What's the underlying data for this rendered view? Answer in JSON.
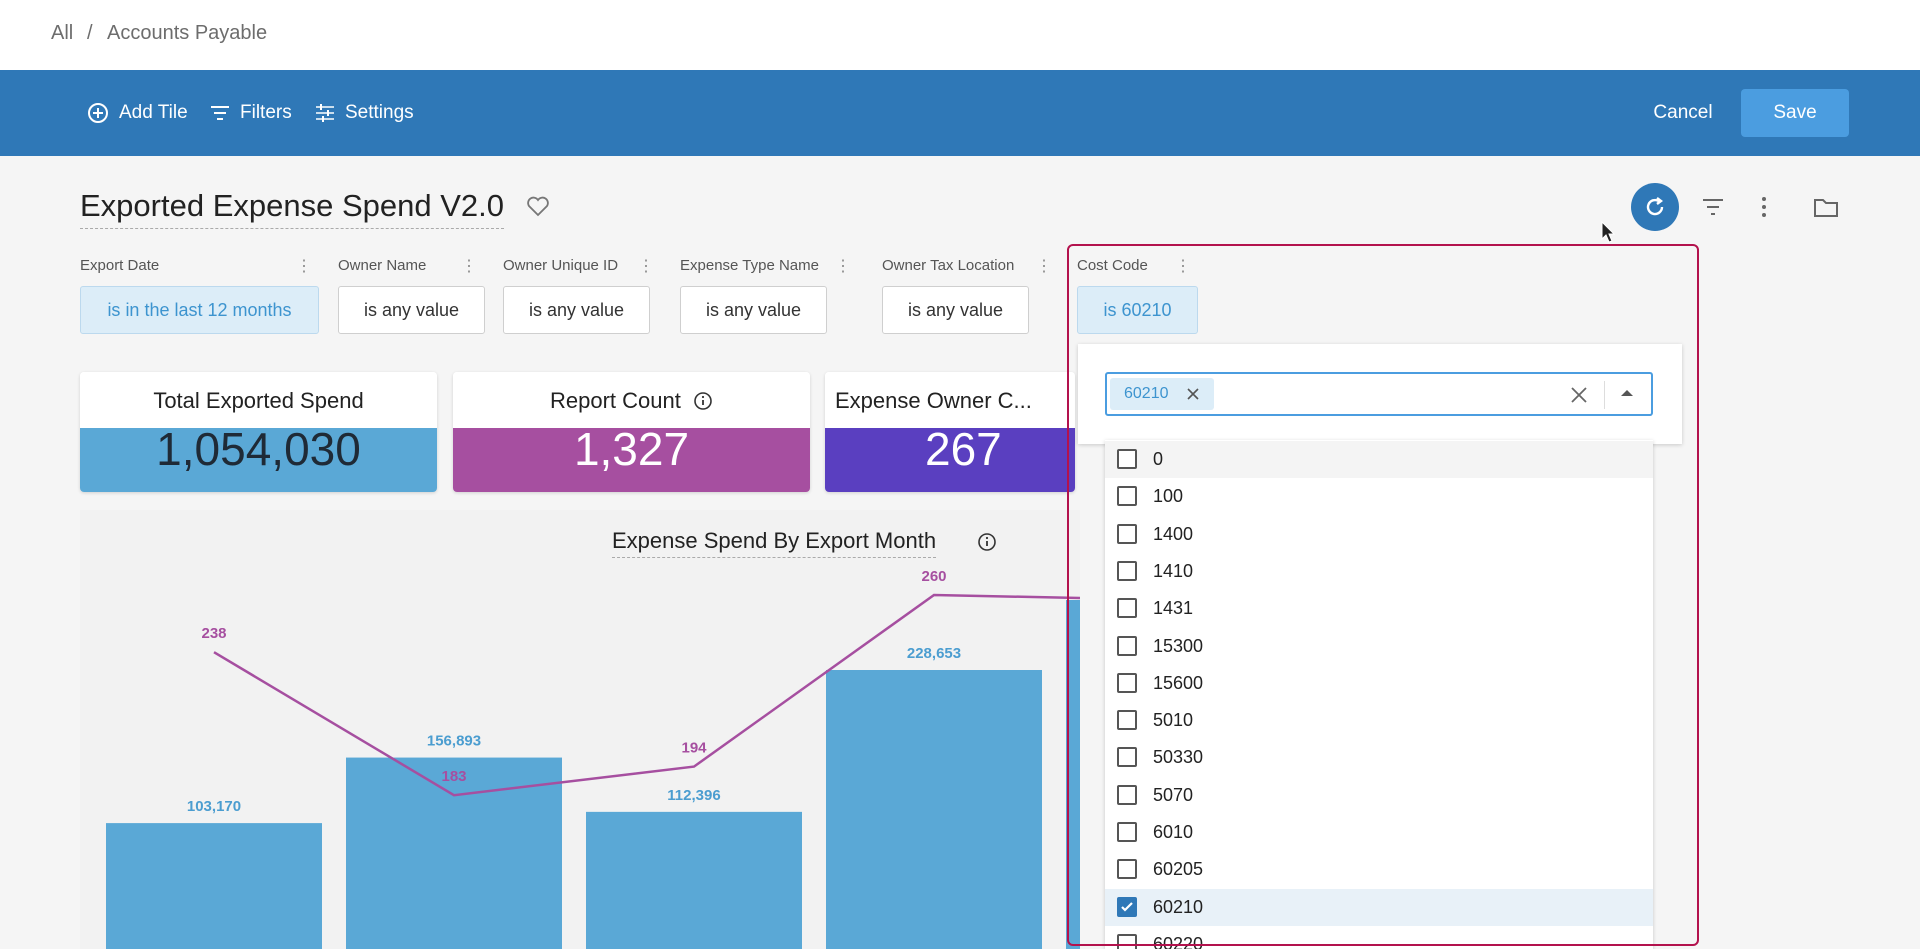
{
  "breadcrumb": {
    "root": "All",
    "separator": "/",
    "current": "Accounts Payable"
  },
  "toolbar": {
    "add_tile": "Add Tile",
    "filters": "Filters",
    "settings": "Settings",
    "cancel": "Cancel",
    "save": "Save"
  },
  "dashboard": {
    "title": "Exported Expense Spend V2.0"
  },
  "filters": [
    {
      "label": "Export Date",
      "value": "is in the last 12 months",
      "active": true
    },
    {
      "label": "Owner Name",
      "value": "is any value",
      "active": false
    },
    {
      "label": "Owner Unique ID",
      "value": "is any value",
      "active": false
    },
    {
      "label": "Expense Type Name",
      "value": "is any value",
      "active": false
    },
    {
      "label": "Owner Tax Location",
      "value": "is any value",
      "active": false
    },
    {
      "label": "Cost Code",
      "value": "is 60210",
      "active": true
    }
  ],
  "kpis": [
    {
      "title": "Total Exported Spend",
      "value": "1,054,030",
      "color": "#5aa8d6"
    },
    {
      "title": "Report Count",
      "value": "1,327",
      "color": "#a64fa0"
    },
    {
      "title": "Expense Owner C...",
      "value": "267",
      "color": "#5a3fc0"
    }
  ],
  "chart_data": {
    "type": "bar",
    "title": "Expense Spend By Export Month",
    "series": [
      {
        "values": [
          103170,
          156893,
          112396,
          228653
        ],
        "color": "#5aa8d6"
      },
      {
        "values": [
          238,
          183,
          194,
          260
        ],
        "color": "#a64fa0"
      }
    ],
    "value_labels": [
      "103,170",
      "156,893",
      "112,396",
      "228,653"
    ]
  },
  "cost_code_dropdown": {
    "selected_chip": "60210",
    "options": [
      {
        "label": "0",
        "checked": false
      },
      {
        "label": "100",
        "checked": false
      },
      {
        "label": "1400",
        "checked": false
      },
      {
        "label": "1410",
        "checked": false
      },
      {
        "label": "1431",
        "checked": false
      },
      {
        "label": "15300",
        "checked": false
      },
      {
        "label": "15600",
        "checked": false
      },
      {
        "label": "5010",
        "checked": false
      },
      {
        "label": "50330",
        "checked": false
      },
      {
        "label": "5070",
        "checked": false
      },
      {
        "label": "6010",
        "checked": false
      },
      {
        "label": "60205",
        "checked": false
      },
      {
        "label": "60210",
        "checked": true
      },
      {
        "label": "60220",
        "checked": false
      }
    ]
  },
  "icons": {
    "refresh": "refresh-icon",
    "filter": "filter-icon",
    "more": "more-vertical-icon",
    "folder": "folder-icon"
  },
  "colors": {
    "topbar": "#2f78b7",
    "save_button": "#4b9de0",
    "highlight_border": "#b3124d"
  }
}
